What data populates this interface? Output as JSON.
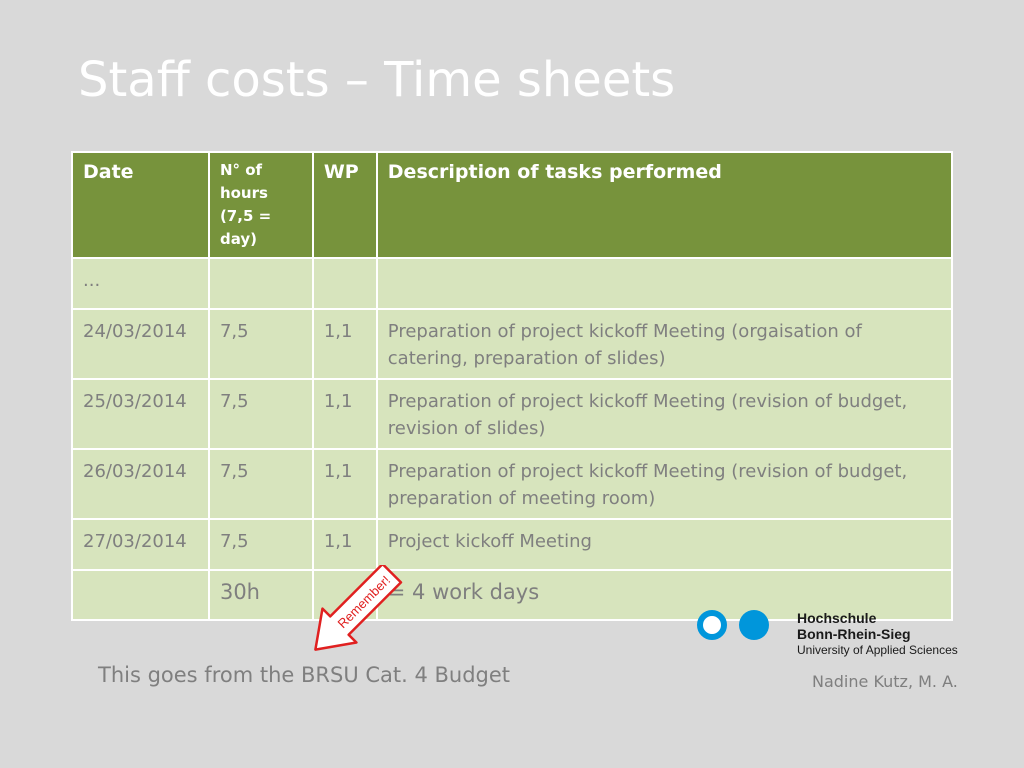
{
  "slide": {
    "title": "Staff costs – Time sheets",
    "footnote": "This goes from the BRSU Cat. 4 Budget",
    "author": "Nadine Kutz, M. A."
  },
  "callout": {
    "label": "Remember!",
    "color": "#e02020"
  },
  "table": {
    "headers": [
      "Date",
      "N° of hours (7,5 = day)",
      "WP",
      "Description of tasks performed"
    ],
    "rows": [
      [
        "...",
        "",
        "",
        ""
      ],
      [
        "24/03/2014",
        "7,5",
        "1,1",
        "Preparation of project kickoff Meeting (orgaisation of catering, preparation  of slides)"
      ],
      [
        "25/03/2014",
        "7,5",
        "1,1",
        "Preparation of project kickoff Meeting (revision of budget, revision of slides)"
      ],
      [
        "26/03/2014",
        "7,5",
        "1,1",
        "Preparation of project kickoff Meeting (revision of budget, preparation of meeting room)"
      ],
      [
        "27/03/2014",
        "7,5",
        "1,1",
        "Project kickoff Meeting"
      ],
      [
        "",
        "30h",
        "",
        "= 4 work days"
      ]
    ],
    "header_color": "#77933c",
    "row_color": "#d7e4bd"
  },
  "logo": {
    "line1": "Hochschule",
    "line2": "Bonn-Rhein-Sieg",
    "line3": "University of Applied Sciences",
    "color": "#0096db"
  }
}
